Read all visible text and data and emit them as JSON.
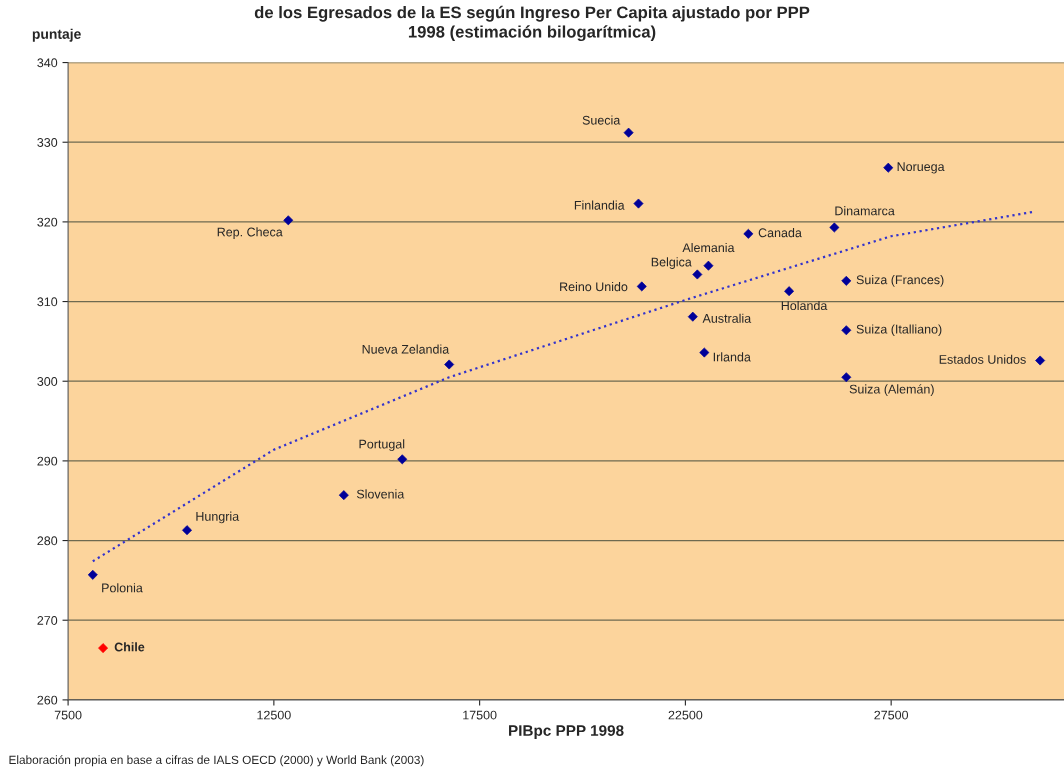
{
  "chart_data": {
    "type": "scatter",
    "title": "de los Egresados de la ES según Ingreso Per Capita ajustado por PPP\n1998 (estimación bilogarítmica)",
    "xlabel": "PIBpc PPP 1998",
    "ylabel": "puntaje",
    "xlim": [
      7500,
      31700
    ],
    "xticks": [
      7500,
      12500,
      17500,
      22500,
      27500
    ],
    "ylim": [
      260,
      340
    ],
    "yticks": [
      260,
      270,
      280,
      290,
      300,
      310,
      320,
      330,
      340
    ],
    "grid": "y",
    "marker": "diamond",
    "series": [
      {
        "color": "#000099",
        "x": [
          21120,
          27430,
          21360,
          26120,
          24030,
          23060,
          22790,
          21440,
          25020,
          26410,
          22680,
          26410,
          22960,
          26410,
          31120,
          12850,
          16760,
          15620,
          14200,
          10390,
          8100
        ],
        "values": [
          331.2,
          326.8,
          322.3,
          319.3,
          318.5,
          314.5,
          313.4,
          311.9,
          311.3,
          312.6,
          308.1,
          306.4,
          303.6,
          300.5,
          302.6,
          320.2,
          302.1,
          290.2,
          285.7,
          281.3,
          275.7
        ]
      },
      {
        "color": "#ff0000",
        "x": [
          8350
        ],
        "values": [
          266.5
        ]
      },
      {
        "type": "line",
        "color": "#3333cc",
        "line_style": "dotted",
        "marker": "none",
        "x": [
          8100,
          12500,
          16760,
          22500,
          27500,
          31000
        ],
        "values": [
          277.4,
          291.4,
          300.5,
          310.2,
          318.2,
          321.3
        ]
      }
    ],
    "annotations": [
      {
        "text": "Suecia",
        "x": 21120,
        "y": 331.2
      },
      {
        "text": "Noruega",
        "x": 27430,
        "y": 326.8
      },
      {
        "text": "Finlandia",
        "x": 21360,
        "y": 322.3
      },
      {
        "text": "Dinamarca",
        "x": 26120,
        "y": 319.3
      },
      {
        "text": "Canada",
        "x": 24030,
        "y": 318.5
      },
      {
        "text": "Alemania",
        "x": 23060,
        "y": 314.5
      },
      {
        "text": "Belgica",
        "x": 22790,
        "y": 313.4
      },
      {
        "text": "Reino Unido",
        "x": 21440,
        "y": 311.9
      },
      {
        "text": "Holanda",
        "x": 25020,
        "y": 311.3
      },
      {
        "text": "Suiza (Frances)",
        "x": 26410,
        "y": 312.6
      },
      {
        "text": "Australia",
        "x": 22680,
        "y": 308.1
      },
      {
        "text": "Suiza (Italliano)",
        "x": 26410,
        "y": 306.4
      },
      {
        "text": "Irlanda",
        "x": 22960,
        "y": 303.6
      },
      {
        "text": "Suiza (Alemán)",
        "x": 26410,
        "y": 300.5
      },
      {
        "text": "Estados Unidos",
        "x": 31120,
        "y": 302.6
      },
      {
        "text": "Rep. Checa",
        "x": 12850,
        "y": 320.2
      },
      {
        "text": "Nueva Zelandia",
        "x": 16760,
        "y": 302.1
      },
      {
        "text": "Portugal",
        "x": 15620,
        "y": 290.2
      },
      {
        "text": "Slovenia",
        "x": 14200,
        "y": 285.7
      },
      {
        "text": "Hungria",
        "x": 10390,
        "y": 281.3
      },
      {
        "text": "Polonia",
        "x": 8100,
        "y": 275.7
      },
      {
        "text": "Chile",
        "x": 8350,
        "y": 266.5
      },
      "Elaboración propia en base a cifras de IALS OECD (2000) y World Bank (2003)"
    ]
  }
}
